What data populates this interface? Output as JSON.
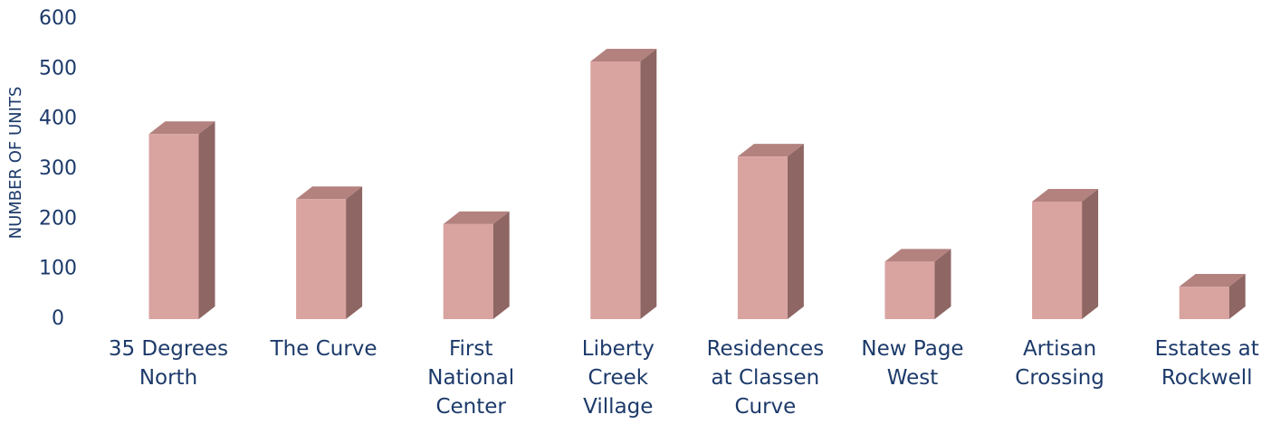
{
  "chart_data": {
    "type": "bar3d",
    "y_label": "NUMBER OF UNITS",
    "categories": [
      "35 Degrees North",
      "The Curve",
      "First National Center",
      "Liberty Creek Village",
      "Residences at Classen Curve",
      "New Page West",
      "Artisan Crossing",
      "Estates at Rockwell"
    ],
    "values": [
      370,
      240,
      190,
      515,
      325,
      115,
      235,
      65
    ],
    "color": "#d9a3a0",
    "ylim": [
      0,
      600
    ],
    "yticks": [
      0,
      100,
      200,
      300,
      400,
      500,
      600
    ],
    "grid": false
  }
}
